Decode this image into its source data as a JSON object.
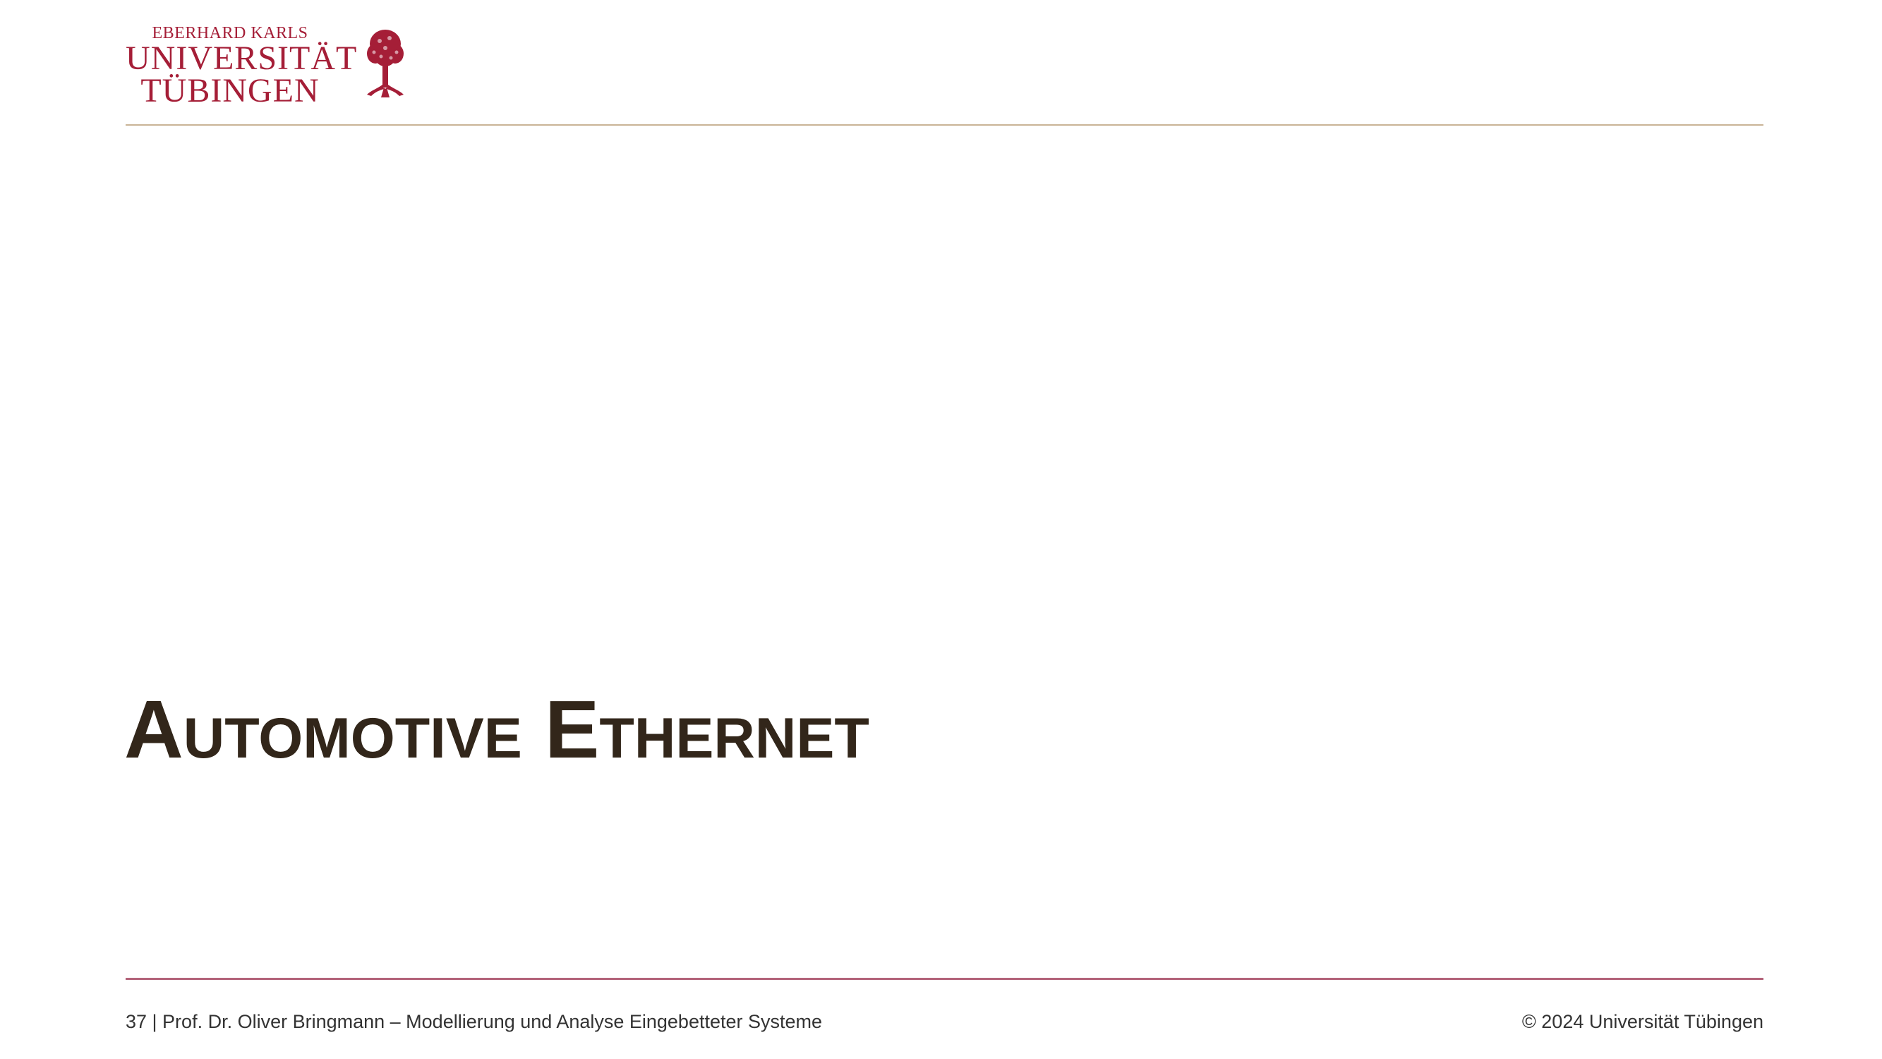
{
  "header": {
    "logo": {
      "line1": "EBERHARD KARLS",
      "line2": "UNIVERSITÄT",
      "line3": "TÜBINGEN",
      "emblem": "tree-icon",
      "color": "#a51e37"
    }
  },
  "slide": {
    "title": "Automotive Ethernet",
    "title_color": "#32261a"
  },
  "footer": {
    "left": "37 | Prof. Dr. Oliver Bringmann – Modellierung und Analyse Eingebetteter Systeme",
    "right": "© 2024 Universität Tübingen"
  }
}
